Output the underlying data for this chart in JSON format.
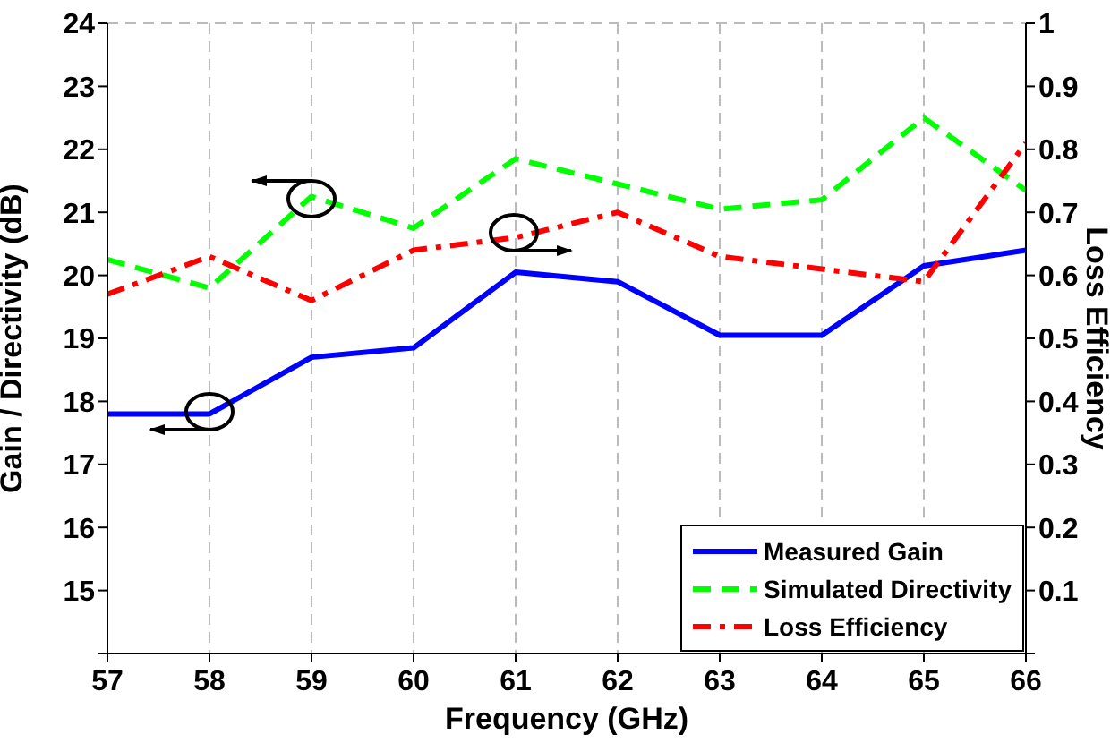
{
  "chart_data": {
    "type": "line",
    "xlabel": "Frequency (GHz)",
    "ylabel": "Gain / Directivity (dB)",
    "y2label": "Loss Efficiency",
    "x": [
      57,
      58,
      59,
      60,
      61,
      62,
      63,
      64,
      65,
      66
    ],
    "xlim": [
      57,
      66
    ],
    "xticks": [
      57,
      58,
      59,
      60,
      61,
      62,
      63,
      64,
      65,
      66
    ],
    "ylim": [
      14,
      24
    ],
    "yticks": [
      {
        "value": 14,
        "label": null
      },
      15,
      16,
      17,
      18,
      19,
      20,
      21,
      22,
      23,
      24
    ],
    "y2lim": [
      0,
      1
    ],
    "y2ticks": [
      {
        "value": 0,
        "label": null
      },
      0.1,
      0.2,
      0.3,
      0.4,
      0.5,
      0.6,
      0.7,
      0.8,
      0.9,
      1
    ],
    "grid": true,
    "legend": "bottom right",
    "marker": "none",
    "series": [
      {
        "name": "Measured Gain",
        "color": "#0000ff",
        "line_style": "solid",
        "values": [
          17.8,
          17.8,
          18.7,
          18.85,
          20.05,
          19.9,
          19.05,
          19.05,
          20.15,
          20.4
        ]
      },
      {
        "name": "Simulated Directivity",
        "color": "#00ff00",
        "line_style": "dashed",
        "values": [
          20.25,
          19.8,
          21.25,
          20.75,
          21.85,
          21.45,
          21.05,
          21.2,
          22.5,
          21.35
        ]
      },
      {
        "name": "Loss Efficiency",
        "color": "#ff0000",
        "line_style": "dashdot",
        "axis": "y2",
        "values": [
          0.57,
          0.63,
          0.56,
          0.64,
          0.66,
          0.7,
          0.63,
          0.61,
          0.59,
          0.81
        ]
      }
    ]
  }
}
